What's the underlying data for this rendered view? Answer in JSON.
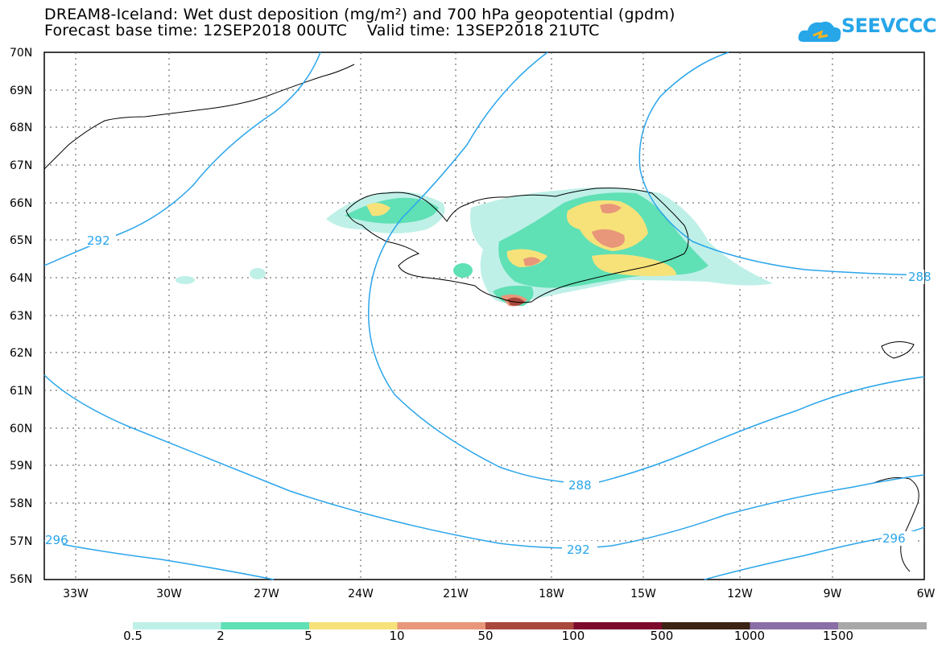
{
  "title": {
    "line1": "DREAM8-Iceland: Wet dust deposition (mg/m²) and 700 hPa geopotential (gpdm)",
    "line2": "Forecast base time: 12SEP2018 00UTC    Valid time: 13SEP2018 21UTC"
  },
  "logo": {
    "text": "SEEVCCC",
    "icon": "cloud-logo-icon",
    "color": "#27a6e8"
  },
  "axes": {
    "lat_labels": [
      "70N",
      "69N",
      "68N",
      "67N",
      "66N",
      "65N",
      "64N",
      "63N",
      "62N",
      "61N",
      "60N",
      "59N",
      "58N",
      "57N",
      "56N"
    ],
    "lon_labels": [
      "33W",
      "30W",
      "27W",
      "24W",
      "21W",
      "18W",
      "15W",
      "12W",
      "9W",
      "6W"
    ]
  },
  "contours": {
    "color": "#2aa5ea",
    "labels": [
      "292",
      "288",
      "292",
      "288",
      "296",
      "296"
    ]
  },
  "legend": {
    "colors": [
      "#bff0e8",
      "#5fe0b5",
      "#f7e27a",
      "#e8977a",
      "#a8473b",
      "#7d0a2d",
      "#3b2414",
      "#8a6ea6",
      "#a8a8a8"
    ],
    "labels": [
      "0.5",
      "2",
      "5",
      "10",
      "50",
      "100",
      "500",
      "1000",
      "1500"
    ]
  }
}
